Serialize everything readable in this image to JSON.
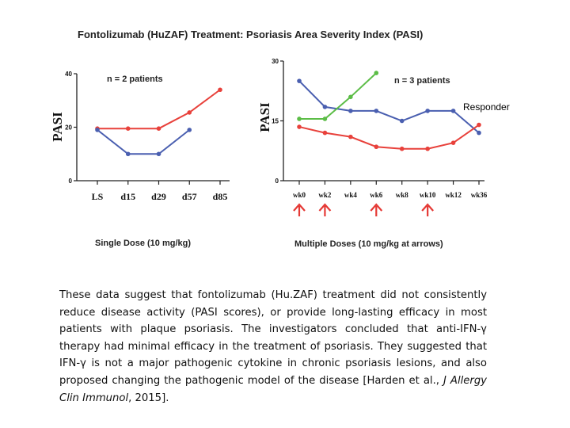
{
  "title": "Fontolizumab (HuZAF) Treatment: Psoriasis Area Severity Index (PASI)",
  "responder_label": "Responder",
  "colors": {
    "red": "#e8413b",
    "blue": "#4a5fb0",
    "green": "#5cbd47",
    "arrow": "#e53935",
    "axis": "#222222"
  },
  "chart_data": [
    {
      "type": "line",
      "annotation": "n = 2 patients",
      "ylabel": "PASI",
      "xlabel": "Single Dose (10 mg/kg)",
      "categories": [
        "LS",
        "d15",
        "d29",
        "d57",
        "d85"
      ],
      "yticks": [
        0,
        20,
        40
      ],
      "ylim": [
        0,
        40
      ],
      "series": [
        {
          "color": "red",
          "values": [
            19.5,
            19.5,
            19.5,
            25.5,
            34
          ]
        },
        {
          "color": "blue",
          "values": [
            19,
            10,
            10,
            19,
            null
          ]
        }
      ]
    },
    {
      "type": "line",
      "annotation": "n = 3 patients",
      "ylabel": "PASI",
      "xlabel": "Multiple Doses  (10 mg/kg at arrows)",
      "categories": [
        "wk0",
        "wk2",
        "wk4",
        "wk6",
        "wk8",
        "wk10",
        "wk12",
        "wk36"
      ],
      "yticks": [
        0,
        15,
        30
      ],
      "ylim": [
        0,
        30
      ],
      "dose_arrows_at": [
        "wk0",
        "wk2",
        "wk6",
        "wk10"
      ],
      "series": [
        {
          "color": "blue",
          "values": [
            25,
            18.5,
            17.5,
            17.5,
            15,
            17.5,
            17.5,
            12
          ]
        },
        {
          "color": "green",
          "values": [
            15.5,
            15.5,
            21,
            27,
            null,
            null,
            null,
            null
          ]
        },
        {
          "color": "red",
          "values": [
            13.5,
            12,
            11,
            8.5,
            8,
            8,
            9.5,
            14
          ]
        }
      ]
    }
  ],
  "caption": {
    "text": "These data suggest that fontolizumab (Hu.ZAF) treatment did not consistently reduce disease activity (PASI scores), or provide long-lasting efficacy in most patients with plaque psoriasis. The investigators concluded that anti-IFN-γ therapy had minimal efficacy in the treatment of psoriasis. They suggested that IFN-γ is not a major pathogenic cytokine in chronic psoriasis lesions, and also proposed changing the pathogenic model of the disease [Harden et al., ",
    "journal": "J Allergy Clin Immunol",
    "tail": ", 2015]."
  }
}
